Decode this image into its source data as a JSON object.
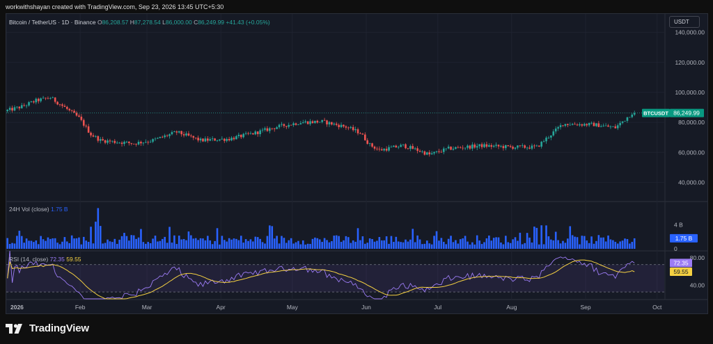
{
  "credit": "workwithshayan created with TradingView.com, Sep 23, 2026 13:45 UTC+5:30",
  "legend": {
    "symbol": "Bitcoin / TetherUS · 1D · Binance",
    "o_label": "O",
    "o": "86,208.57",
    "h_label": "H",
    "h": "87,278.54",
    "l_label": "L",
    "l": "86,000.00",
    "c_label": "C",
    "c": "86,249.99",
    "change": "+41.43 (+0.05%)"
  },
  "currency_button": "USDT",
  "price_axis": {
    "ticks": [
      "140,000.00",
      "120,000.00",
      "100,000.00",
      "80,000.00",
      "60,000.00",
      "40,000.00"
    ],
    "tick_values": [
      140000,
      120000,
      100000,
      80000,
      60000,
      40000
    ],
    "range": [
      30000,
      150000
    ],
    "last_price_label": "86,249.99",
    "symbol_tag": "BTCUSDT"
  },
  "volume_pane": {
    "label": "24H Vol (close)",
    "value": "1.75 B",
    "axis_ticks": [
      "4 B",
      "0"
    ],
    "tick_values": [
      4,
      0
    ],
    "range": [
      0,
      7.2
    ],
    "last_label": "1.75 B"
  },
  "rsi_pane": {
    "label": "RSI (14, close)",
    "rsi_value": "72.35",
    "ma_value": "59.55",
    "axis_ticks": [
      "80.00",
      "40.00"
    ],
    "tick_values": [
      80,
      40
    ],
    "range": [
      20,
      90
    ],
    "band_upper": 70,
    "band_lower": 30
  },
  "time_axis": [
    "2026",
    "Feb",
    "Mar",
    "Apr",
    "May",
    "Jun",
    "Jul",
    "Aug",
    "Sep",
    "Oct"
  ],
  "brand": "TradingView",
  "colors": {
    "up": "#26a69a",
    "down": "#ef5350",
    "volume": "#2962ff",
    "rsi": "#9c7cf5",
    "rsi_ma": "#f5d142",
    "last_price_tag": "#089981"
  },
  "chart_data": {
    "type": "candlestick",
    "x_range": [
      "2026-01-01",
      "2026-10-04"
    ],
    "price_anchors": [
      [
        "2026-01-01",
        87500
      ],
      [
        "2026-01-08",
        90500
      ],
      [
        "2026-01-14",
        94500
      ],
      [
        "2026-01-20",
        96500
      ],
      [
        "2026-01-26",
        90000
      ],
      [
        "2026-02-01",
        83000
      ],
      [
        "2026-02-06",
        72000
      ],
      [
        "2026-02-10",
        68000
      ],
      [
        "2026-02-16",
        67000
      ],
      [
        "2026-02-24",
        66000
      ],
      [
        "2026-03-04",
        68000
      ],
      [
        "2026-03-14",
        73500
      ],
      [
        "2026-03-24",
        68000
      ],
      [
        "2026-04-05",
        69000
      ],
      [
        "2026-04-16",
        73000
      ],
      [
        "2026-04-25",
        77000
      ],
      [
        "2026-05-05",
        80000
      ],
      [
        "2026-05-14",
        80500
      ],
      [
        "2026-05-24",
        77000
      ],
      [
        "2026-05-30",
        73000
      ],
      [
        "2026-06-03",
        65000
      ],
      [
        "2026-06-07",
        61500
      ],
      [
        "2026-06-17",
        64500
      ],
      [
        "2026-06-23",
        61500
      ],
      [
        "2026-06-28",
        58500
      ],
      [
        "2026-07-06",
        62500
      ],
      [
        "2026-07-20",
        64500
      ],
      [
        "2026-08-01",
        63500
      ],
      [
        "2026-08-12",
        63500
      ],
      [
        "2026-08-18",
        72000
      ],
      [
        "2026-08-23",
        79000
      ],
      [
        "2026-09-05",
        78500
      ],
      [
        "2026-09-14",
        76500
      ],
      [
        "2026-09-18",
        82000
      ],
      [
        "2026-09-21",
        86249.99
      ]
    ],
    "last_price": 86249.99,
    "volume_peak": {
      "date": "2026-02-08",
      "value": 6.8
    },
    "volume_last": 1.75,
    "rsi_last": 72.35,
    "rsi_ma_last": 59.55
  }
}
